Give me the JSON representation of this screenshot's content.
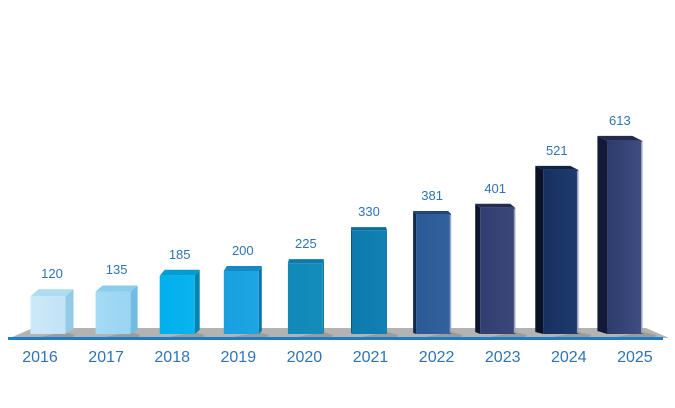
{
  "chart_data": {
    "type": "bar",
    "variant": "3d-perspective-column",
    "title": "",
    "xlabel": "",
    "ylabel": "",
    "categories": [
      "2016",
      "2017",
      "2018",
      "2019",
      "2020",
      "2021",
      "2022",
      "2023",
      "2024",
      "2025"
    ],
    "values": [
      120,
      135,
      185,
      200,
      225,
      330,
      381,
      401,
      521,
      613
    ],
    "ylim": [
      0,
      650
    ],
    "grid": false,
    "legend": false,
    "data_labels_shown": true,
    "colors": {
      "label_color": "#2E74B5",
      "axis_line_color": "#1D7EC5",
      "floor_color": "#B3B3B3",
      "floor_shadow_color": "#9B9B9B",
      "highlight_edge_color": "#A9B1CC",
      "bars": [
        {
          "front": "#CDE9F8",
          "front2": "#C0E3F6",
          "top": "#AEDCF1",
          "side": "#93CBE5"
        },
        {
          "front": "#A4DAF5",
          "front2": "#9AD5F3",
          "top": "#8BCDEB",
          "side": "#70BCE2"
        },
        {
          "front": "#00B0EC",
          "front2": "#0AB4EE",
          "top": "#019CD3",
          "side": "#0483B0"
        },
        {
          "front": "#189FDF",
          "front2": "#1EA5E3",
          "top": "#1489C4",
          "side": "#0D74A4"
        },
        {
          "front": "#1189B8",
          "front2": "#158DBB",
          "top": "#0D7AA8",
          "side": "#0A6C94"
        },
        {
          "front": "#0E7AAD",
          "front2": "#1280B3",
          "top": "#0C6C9C",
          "side": "#095E88"
        },
        {
          "front": "#2A5995",
          "front2": "#33629F",
          "top": "#1D477C",
          "side": "#132A50"
        },
        {
          "front": "#323E70",
          "front2": "#3B4779",
          "top": "#252C52",
          "side": "#0D1630"
        },
        {
          "front": "#16315F",
          "front2": "#1E3B6F",
          "top": "#0E2347",
          "side": "#0A1228"
        },
        {
          "front": "#2D3A6C",
          "front2": "#414E82",
          "top": "#222B52",
          "side": "#121A38"
        }
      ]
    }
  }
}
